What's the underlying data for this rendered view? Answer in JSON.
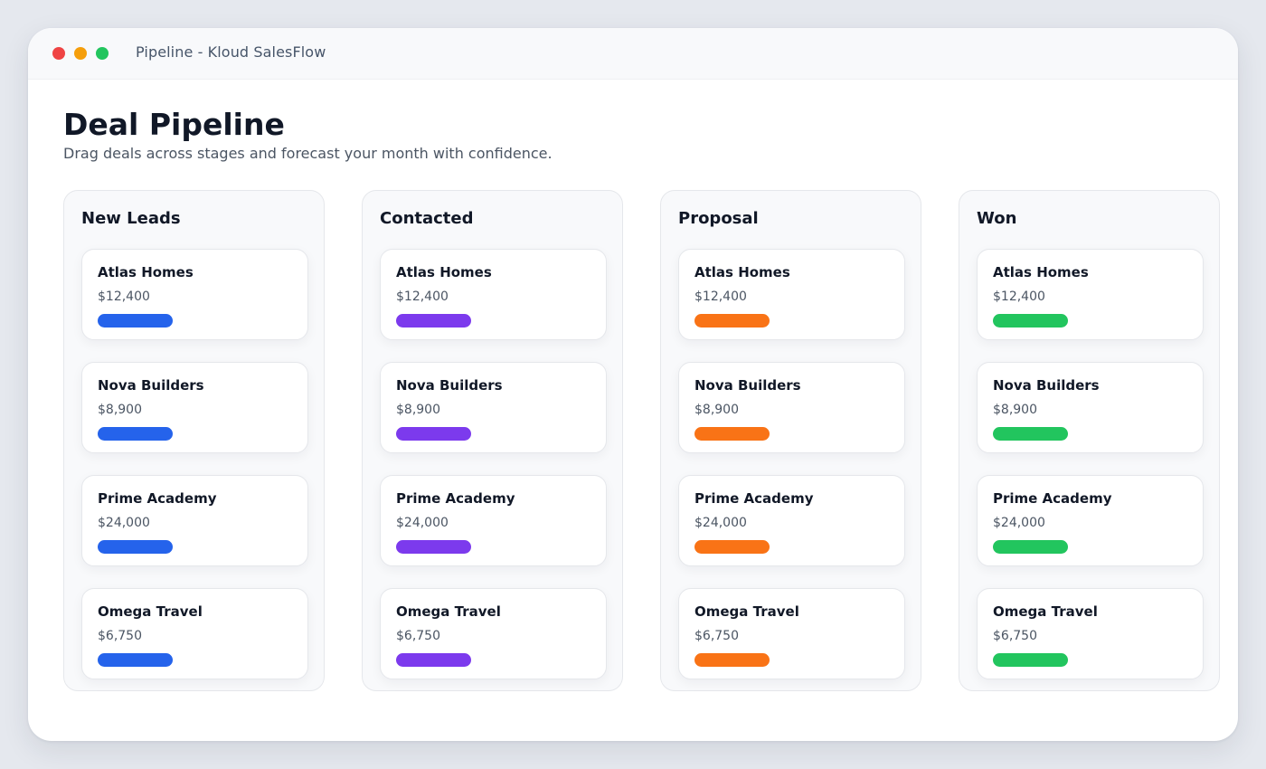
{
  "window": {
    "title": "Pipeline - Kloud SalesFlow",
    "controls": {
      "close_color": "#ef4444",
      "minimize_color": "#f59e0b",
      "maximize_color": "#22c55e"
    }
  },
  "header": {
    "title": "Deal Pipeline",
    "subtitle": "Drag deals across stages and forecast your month with confidence."
  },
  "pipeline": {
    "columns": [
      {
        "title": "New Leads",
        "color": "#2563eb",
        "deals": [
          {
            "name": "Atlas Homes",
            "amount": "$12,400"
          },
          {
            "name": "Nova Builders",
            "amount": "$8,900"
          },
          {
            "name": "Prime Academy",
            "amount": "$24,000"
          },
          {
            "name": "Omega Travel",
            "amount": "$6,750"
          }
        ]
      },
      {
        "title": "Contacted",
        "color": "#7c3aed",
        "deals": [
          {
            "name": "Atlas Homes",
            "amount": "$12,400"
          },
          {
            "name": "Nova Builders",
            "amount": "$8,900"
          },
          {
            "name": "Prime Academy",
            "amount": "$24,000"
          },
          {
            "name": "Omega Travel",
            "amount": "$6,750"
          }
        ]
      },
      {
        "title": "Proposal",
        "color": "#f97316",
        "deals": [
          {
            "name": "Atlas Homes",
            "amount": "$12,400"
          },
          {
            "name": "Nova Builders",
            "amount": "$8,900"
          },
          {
            "name": "Prime Academy",
            "amount": "$24,000"
          },
          {
            "name": "Omega Travel",
            "amount": "$6,750"
          }
        ]
      },
      {
        "title": "Won",
        "color": "#22c55e",
        "deals": [
          {
            "name": "Atlas Homes",
            "amount": "$12,400"
          },
          {
            "name": "Nova Builders",
            "amount": "$8,900"
          },
          {
            "name": "Prime Academy",
            "amount": "$24,000"
          },
          {
            "name": "Omega Travel",
            "amount": "$6,750"
          }
        ]
      }
    ]
  }
}
